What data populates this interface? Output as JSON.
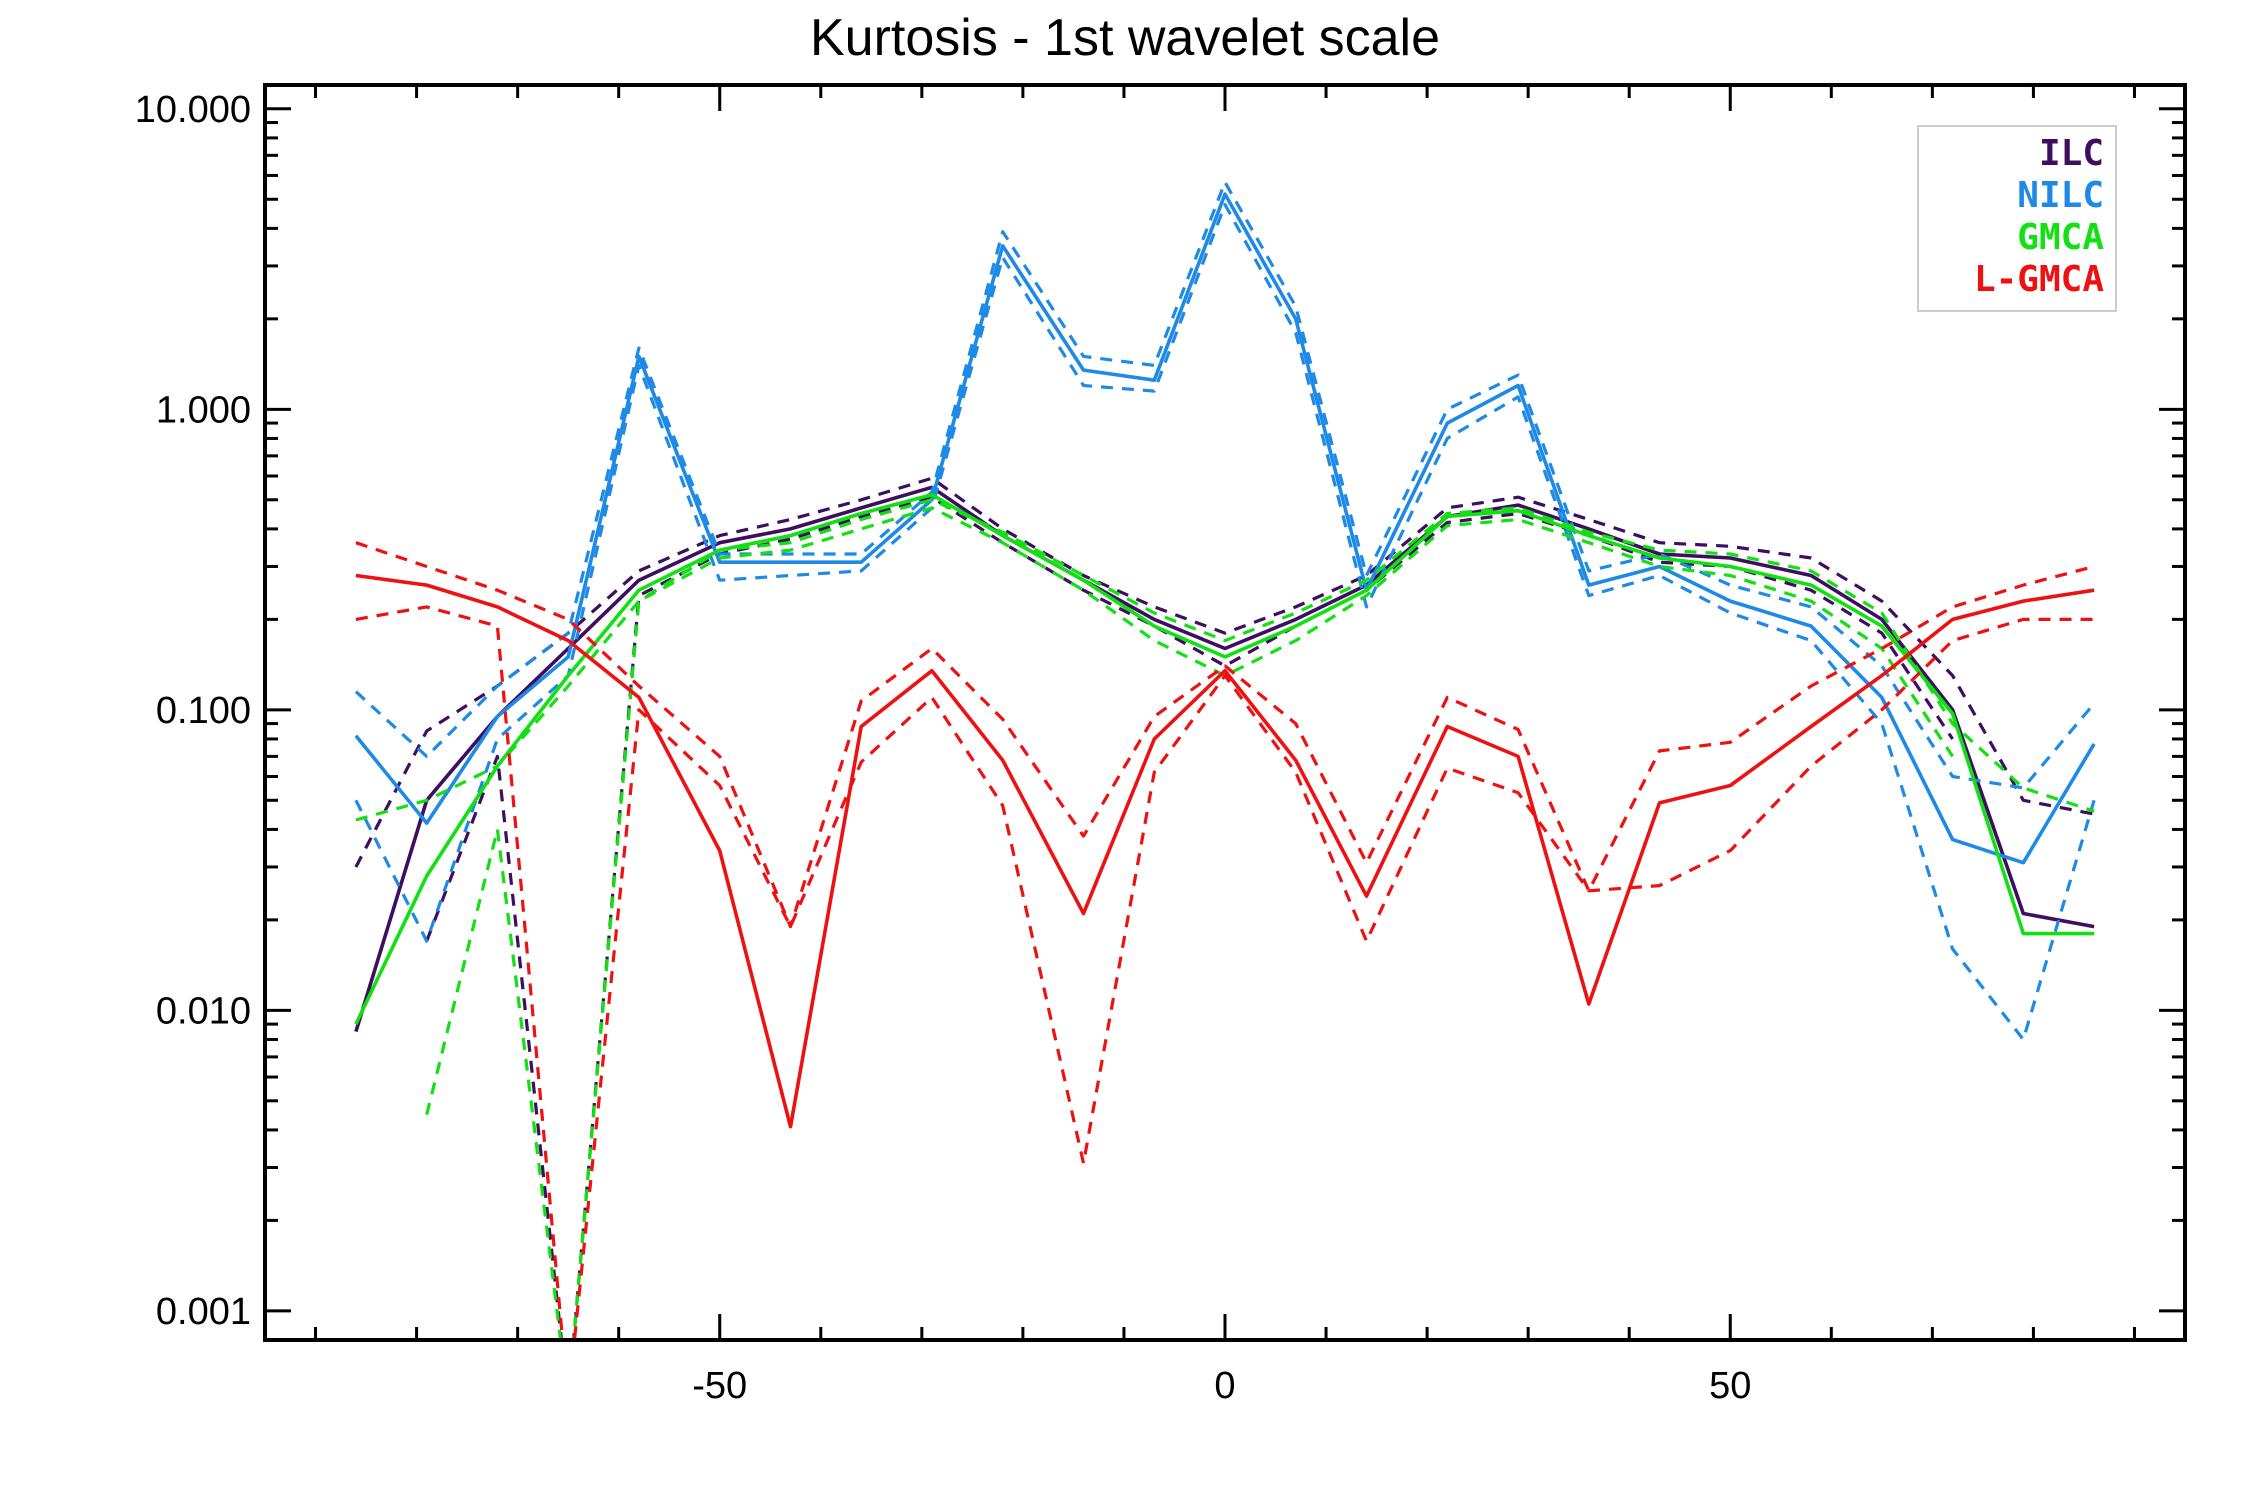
{
  "chart_data": {
    "type": "line",
    "title": "Kurtosis - 1st wavelet scale",
    "xlabel": "",
    "ylabel": "",
    "xlim": [
      -95,
      95
    ],
    "ylim": [
      0.0008,
      12
    ],
    "yscale": "log",
    "x_ticks": [
      -50,
      0,
      50
    ],
    "x_tick_labels": [
      "-50",
      "0",
      "50"
    ],
    "y_ticks": [
      0.001,
      0.01,
      0.1,
      1,
      10
    ],
    "y_tick_labels": [
      "0.001",
      "0.010",
      "0.100",
      "1.000",
      "10.000"
    ],
    "grid": false,
    "legend_position": "top-right",
    "legend": [
      {
        "label": "ILC",
        "color": "#3d0f5e"
      },
      {
        "label": "NILC",
        "color": "#1e8ae6"
      },
      {
        "label": "GMCA",
        "color": "#12e012"
      },
      {
        "label": "L-GMCA",
        "color": "#ee1111"
      }
    ],
    "x": [
      -86,
      -79,
      -72,
      -65,
      -58,
      -50,
      -43,
      -36,
      -29,
      -22,
      -14,
      -7,
      0,
      7,
      14,
      22,
      29,
      36,
      43,
      50,
      58,
      65,
      72,
      79,
      86
    ],
    "series": [
      {
        "name": "ILC",
        "color": "#3d0f5e",
        "dash": "solid",
        "values": [
          0.0085,
          0.05,
          0.095,
          0.16,
          0.27,
          0.36,
          0.4,
          0.47,
          0.55,
          0.38,
          0.27,
          0.2,
          0.16,
          0.2,
          0.26,
          0.44,
          0.48,
          0.4,
          0.33,
          0.32,
          0.28,
          0.2,
          0.1,
          0.021,
          0.019
        ]
      },
      {
        "color": "#3d0f5e",
        "dash": "dashed",
        "values": [
          0.03,
          0.085,
          0.12,
          0.18,
          0.29,
          0.38,
          0.43,
          0.5,
          0.59,
          0.4,
          0.28,
          0.22,
          0.18,
          0.22,
          0.28,
          0.47,
          0.51,
          0.43,
          0.36,
          0.35,
          0.32,
          0.23,
          0.13,
          0.05,
          0.045
        ]
      },
      {
        "color": "#3d0f5e",
        "dash": "dashed",
        "values": [
          null,
          0.017,
          0.07,
          0.0005,
          0.24,
          0.33,
          0.37,
          0.44,
          0.51,
          0.36,
          0.25,
          0.19,
          0.14,
          0.19,
          0.25,
          0.42,
          0.45,
          0.38,
          0.31,
          0.3,
          0.25,
          0.18,
          0.08,
          null,
          null
        ]
      },
      {
        "name": "NILC",
        "color": "#1e8ae6",
        "dash": "solid",
        "values": [
          0.082,
          0.042,
          0.095,
          0.15,
          1.5,
          0.31,
          0.31,
          0.31,
          0.5,
          3.5,
          1.35,
          1.25,
          5.2,
          2.0,
          0.25,
          0.9,
          1.2,
          0.26,
          0.3,
          0.23,
          0.19,
          0.11,
          0.037,
          0.031,
          0.077
        ]
      },
      {
        "color": "#1e8ae6",
        "dash": "dashed",
        "values": [
          0.115,
          0.07,
          0.12,
          0.18,
          1.6,
          0.33,
          0.33,
          0.33,
          0.53,
          3.9,
          1.5,
          1.4,
          5.7,
          2.2,
          0.28,
          1.0,
          1.3,
          0.29,
          0.33,
          0.26,
          0.22,
          0.14,
          0.06,
          0.055,
          0.105
        ]
      },
      {
        "color": "#1e8ae6",
        "dash": "dashed",
        "values": [
          0.05,
          0.017,
          0.08,
          0.13,
          1.4,
          0.27,
          0.28,
          0.29,
          0.47,
          3.2,
          1.2,
          1.15,
          4.8,
          1.8,
          0.22,
          0.8,
          1.1,
          0.24,
          0.28,
          0.21,
          0.17,
          0.09,
          0.016,
          0.008,
          0.05
        ]
      },
      {
        "name": "GMCA",
        "color": "#12e012",
        "dash": "solid",
        "values": [
          0.009,
          0.028,
          0.065,
          0.13,
          0.25,
          0.34,
          0.38,
          0.45,
          0.52,
          0.38,
          0.27,
          0.19,
          0.15,
          0.19,
          0.25,
          0.44,
          0.46,
          0.38,
          0.32,
          0.3,
          0.26,
          0.19,
          0.097,
          0.018,
          0.018
        ]
      },
      {
        "color": "#12e012",
        "dash": "dashed",
        "values": [
          0.043,
          0.05,
          0.065,
          0.12,
          0.23,
          0.34,
          0.36,
          0.43,
          0.5,
          0.39,
          0.28,
          0.21,
          0.17,
          0.21,
          0.27,
          0.45,
          0.47,
          0.39,
          0.34,
          0.33,
          0.29,
          0.21,
          0.09,
          0.055,
          0.046
        ]
      },
      {
        "color": "#12e012",
        "dash": "dashed",
        "values": [
          null,
          0.0045,
          0.04,
          0.0005,
          0.23,
          0.32,
          0.34,
          0.4,
          0.47,
          0.36,
          0.25,
          0.17,
          0.13,
          0.17,
          0.24,
          0.41,
          0.43,
          0.36,
          0.3,
          0.28,
          0.23,
          0.16,
          0.07,
          null,
          null
        ]
      },
      {
        "name": "L-GMCA",
        "color": "#ee1111",
        "dash": "solid",
        "values": [
          0.28,
          0.26,
          0.22,
          0.17,
          0.11,
          0.034,
          0.0041,
          0.088,
          0.135,
          0.068,
          0.021,
          0.08,
          0.135,
          0.068,
          0.024,
          0.088,
          0.07,
          0.0105,
          0.049,
          0.056,
          0.088,
          0.13,
          0.2,
          0.23,
          0.25
        ]
      },
      {
        "color": "#ee1111",
        "dash": "dashed",
        "values": [
          0.36,
          0.3,
          0.25,
          0.2,
          0.12,
          0.07,
          0.019,
          0.107,
          0.16,
          0.093,
          0.038,
          0.095,
          0.14,
          0.09,
          0.031,
          0.11,
          0.086,
          0.025,
          0.073,
          0.078,
          0.12,
          0.16,
          0.22,
          0.26,
          0.3
        ]
      },
      {
        "color": "#ee1111",
        "dash": "dashed",
        "values": [
          0.2,
          0.22,
          0.19,
          0.0005,
          0.1,
          0.056,
          0.019,
          0.067,
          0.11,
          0.048,
          0.0031,
          0.062,
          0.13,
          0.062,
          0.017,
          0.064,
          0.053,
          0.025,
          0.026,
          0.034,
          0.065,
          0.1,
          0.17,
          0.2,
          0.2
        ]
      }
    ]
  }
}
